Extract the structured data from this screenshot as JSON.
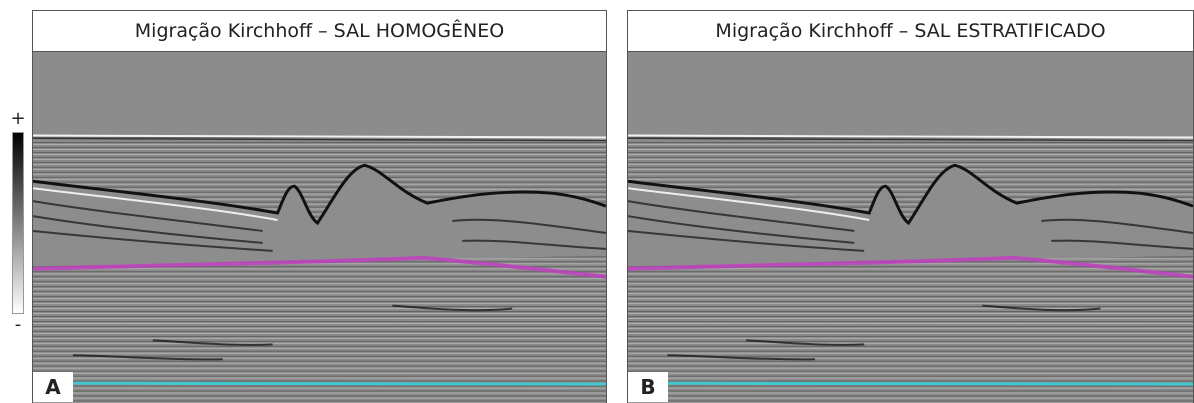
{
  "colorbar": {
    "max_label": "+",
    "min_label": "-"
  },
  "panels": [
    {
      "title": "Migração Kirchhoff – SAL HOMOGÊNEO",
      "label": "A"
    },
    {
      "title": "Migração Kirchhoff – SAL ESTRATIFICADO",
      "label": "B"
    }
  ]
}
